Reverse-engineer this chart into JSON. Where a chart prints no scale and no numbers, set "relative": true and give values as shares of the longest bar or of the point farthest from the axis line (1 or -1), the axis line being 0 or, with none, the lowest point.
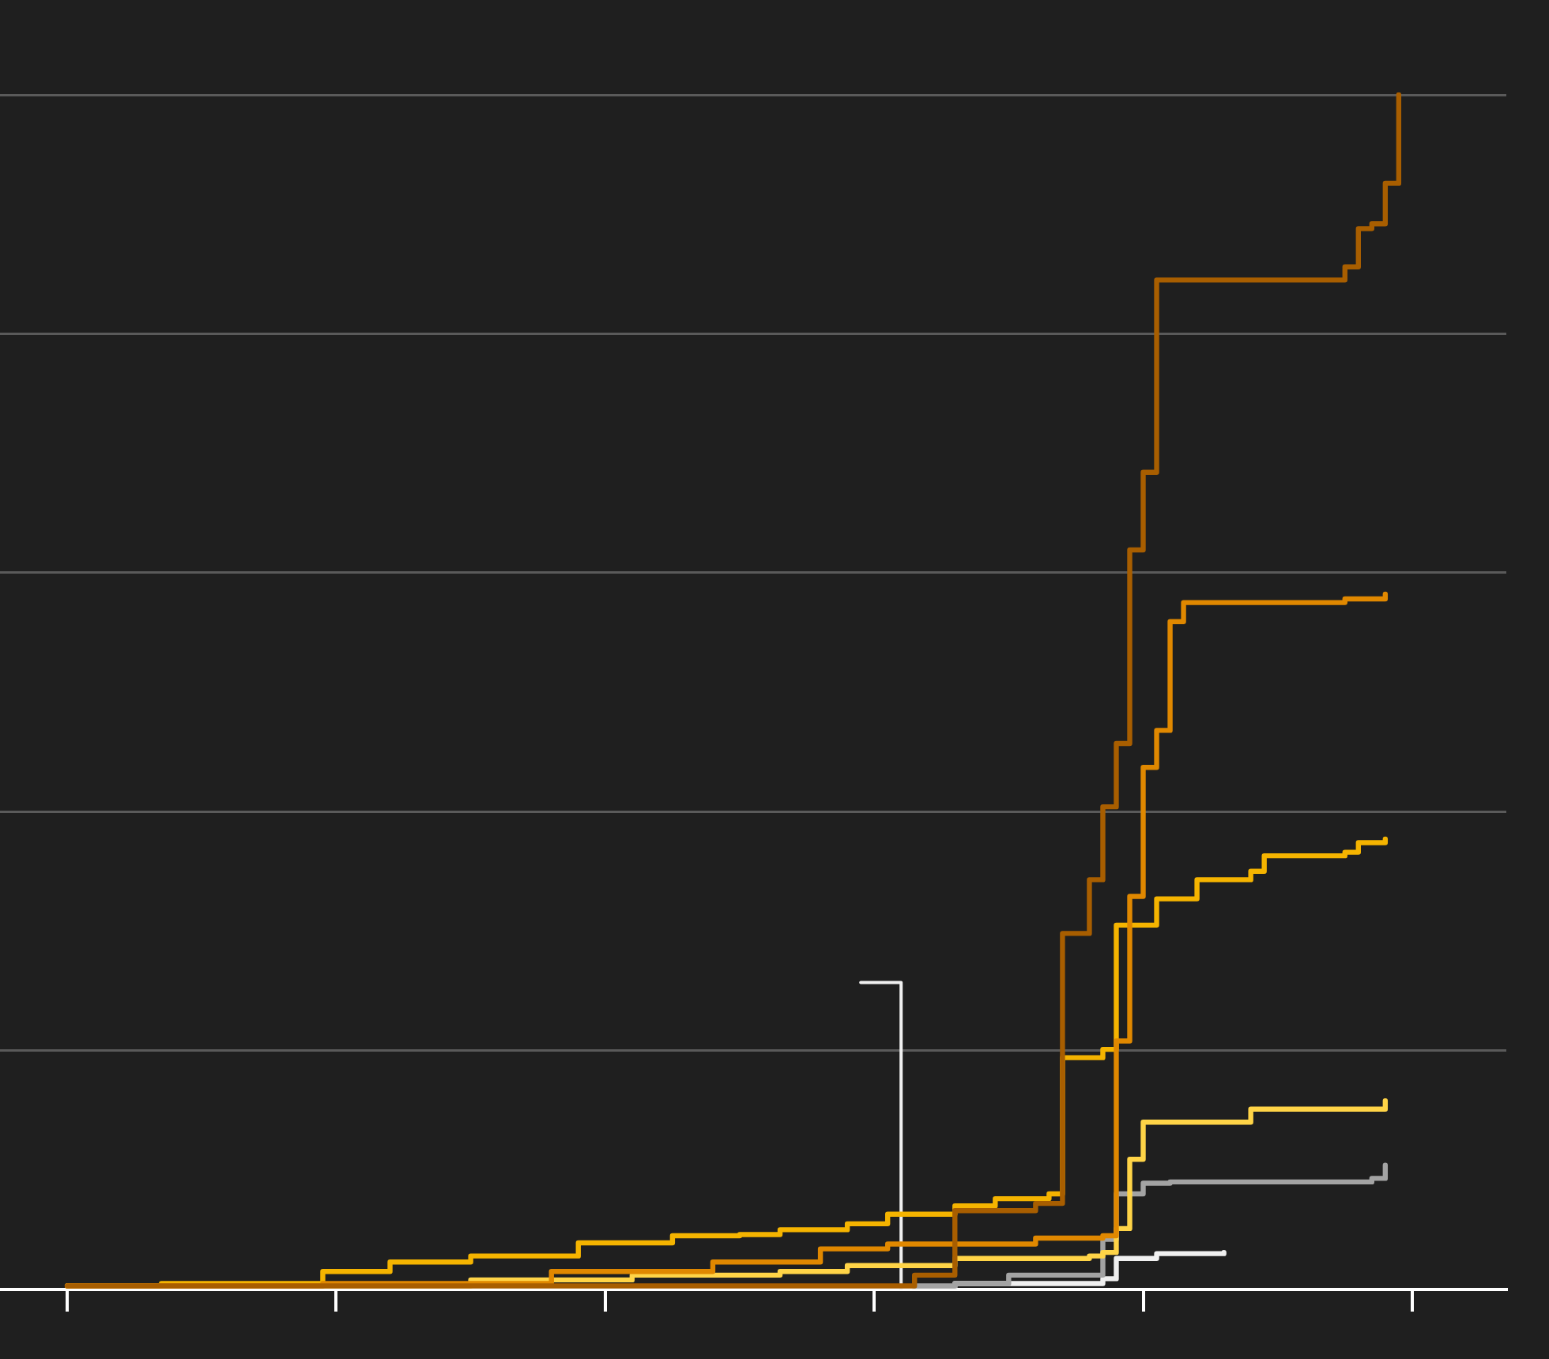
{
  "chart_data": {
    "type": "step",
    "relative": true,
    "grid": "y",
    "legend": false,
    "tick_labels": false,
    "categories": [
      null,
      null,
      null,
      null,
      null,
      null,
      null,
      null,
      null,
      null,
      null,
      null,
      null,
      null,
      null,
      null,
      null,
      null,
      null,
      null,
      null,
      null,
      null,
      null,
      null,
      null,
      null,
      null,
      null,
      null,
      null,
      null,
      null,
      null,
      null,
      null,
      null,
      null,
      null,
      null,
      null,
      null,
      null,
      null,
      null,
      null,
      null,
      null,
      null,
      null,
      null,
      null,
      null,
      null,
      null,
      null,
      null,
      null,
      null,
      null,
      null,
      null,
      null,
      null,
      null,
      null,
      null,
      null,
      null,
      null,
      null,
      null,
      null,
      null,
      null,
      null,
      null,
      null,
      null,
      null,
      null,
      null,
      null,
      null,
      null,
      null,
      null,
      null,
      null,
      null,
      null,
      null,
      null,
      null,
      null,
      null,
      null,
      null,
      null,
      null,
      null,
      null,
      null,
      null,
      null,
      null,
      null,
      null,
      null,
      null,
      null,
      null,
      null
    ],
    "series": [
      {
        "color": "#a85e00",
        "values": [
          null,
          null,
          null,
          null,
          null,
          0.003,
          null,
          null,
          null,
          null,
          null,
          null,
          null,
          null,
          null,
          null,
          null,
          null,
          null,
          null,
          null,
          null,
          null,
          null,
          null,
          null,
          null,
          null,
          null,
          null,
          null,
          null,
          null,
          null,
          null,
          null,
          null,
          null,
          null,
          null,
          null,
          null,
          null,
          null,
          null,
          null,
          null,
          null,
          null,
          null,
          null,
          null,
          null,
          null,
          null,
          null,
          null,
          null,
          null,
          null,
          null,
          null,
          null,
          null,
          null,
          null,
          null,
          null,
          0.012,
          null,
          null,
          0.066,
          null,
          null,
          null,
          null,
          null,
          0.072,
          null,
          0.298,
          null,
          0.343,
          0.404,
          0.457,
          0.619,
          0.684,
          0.845,
          null,
          null,
          null,
          null,
          null,
          null,
          null,
          null,
          null,
          null,
          null,
          null,
          null,
          0.856,
          0.888,
          0.892,
          0.926,
          1.0,
          null,
          null,
          null,
          null,
          null,
          null,
          null,
          null
        ]
      },
      {
        "color": "#e08800",
        "values": [
          null,
          null,
          null,
          null,
          null,
          0.003,
          null,
          null,
          null,
          null,
          null,
          null,
          null,
          null,
          null,
          null,
          null,
          null,
          null,
          null,
          null,
          null,
          null,
          null,
          0.005,
          null,
          null,
          null,
          null,
          null,
          null,
          null,
          null,
          null,
          null,
          null,
          null,
          null,
          null,
          null,
          null,
          0.015,
          null,
          null,
          null,
          null,
          null,
          null,
          null,
          null,
          null,
          null,
          null,
          0.023,
          null,
          null,
          null,
          null,
          null,
          null,
          null,
          0.034,
          null,
          null,
          null,
          null,
          0.038,
          null,
          null,
          null,
          null,
          null,
          null,
          null,
          null,
          null,
          null,
          0.043,
          null,
          null,
          null,
          null,
          0.045,
          0.208,
          0.329,
          0.437,
          0.468,
          0.559,
          0.575,
          null,
          null,
          null,
          null,
          null,
          null,
          null,
          null,
          null,
          null,
          null,
          0.578,
          null,
          null,
          0.582,
          null,
          null,
          null,
          null,
          null,
          null,
          null,
          null,
          null
        ]
      },
      {
        "color": "#f5b400",
        "values": [
          null,
          null,
          null,
          null,
          null,
          0.003,
          null,
          null,
          null,
          null,
          null,
          null,
          0.005,
          null,
          null,
          null,
          null,
          null,
          null,
          null,
          null,
          null,
          null,
          null,
          0.015,
          null,
          null,
          null,
          null,
          0.023,
          null,
          null,
          null,
          null,
          null,
          0.028,
          null,
          null,
          null,
          null,
          null,
          null,
          null,
          0.039,
          null,
          null,
          null,
          null,
          null,
          null,
          0.045,
          null,
          null,
          null,
          null,
          0.046,
          null,
          null,
          0.05,
          null,
          null,
          null,
          null,
          0.055,
          null,
          null,
          0.063,
          null,
          null,
          null,
          null,
          0.07,
          null,
          null,
          0.076,
          null,
          null,
          null,
          0.08,
          0.194,
          null,
          null,
          0.201,
          0.305,
          null,
          null,
          0.327,
          null,
          null,
          0.343,
          null,
          null,
          null,
          0.35,
          0.363,
          null,
          null,
          null,
          null,
          null,
          0.366,
          0.374,
          null,
          0.377,
          null,
          null,
          null,
          null,
          null,
          null,
          null,
          null,
          null
        ]
      },
      {
        "color": "#ffd447",
        "values": [
          null,
          null,
          null,
          null,
          null,
          0.003,
          null,
          null,
          null,
          null,
          null,
          null,
          null,
          null,
          null,
          null,
          null,
          null,
          null,
          null,
          null,
          null,
          null,
          null,
          null,
          null,
          null,
          null,
          null,
          null,
          null,
          null,
          null,
          null,
          null,
          0.008,
          null,
          null,
          null,
          null,
          null,
          null,
          null,
          null,
          null,
          null,
          null,
          0.012,
          null,
          null,
          null,
          null,
          null,
          null,
          null,
          null,
          null,
          null,
          0.015,
          null,
          null,
          null,
          null,
          0.02,
          null,
          null,
          null,
          null,
          null,
          null,
          null,
          0.026,
          null,
          null,
          null,
          null,
          null,
          null,
          null,
          null,
          null,
          0.028,
          0.031,
          0.051,
          0.109,
          0.14,
          null,
          null,
          null,
          null,
          null,
          null,
          null,
          0.151,
          null,
          null,
          null,
          null,
          null,
          null,
          null,
          null,
          null,
          0.158,
          null,
          null,
          null,
          null,
          null,
          null,
          null,
          null,
          null
        ]
      },
      {
        "color": "#a3a3a3",
        "values": [
          null,
          null,
          null,
          null,
          null,
          null,
          null,
          null,
          null,
          null,
          null,
          null,
          null,
          null,
          null,
          null,
          null,
          null,
          null,
          null,
          null,
          null,
          null,
          null,
          null,
          null,
          null,
          null,
          null,
          null,
          null,
          null,
          null,
          null,
          null,
          null,
          null,
          null,
          null,
          null,
          null,
          null,
          null,
          null,
          null,
          null,
          null,
          null,
          null,
          null,
          null,
          null,
          null,
          null,
          null,
          null,
          null,
          null,
          null,
          null,
          null,
          null,
          null,
          null,
          null,
          null,
          null,
          null,
          0.003,
          null,
          null,
          0.005,
          null,
          null,
          null,
          0.012,
          null,
          null,
          null,
          null,
          null,
          null,
          0.042,
          0.08,
          null,
          0.089,
          null,
          0.09,
          null,
          null,
          null,
          null,
          null,
          null,
          null,
          null,
          null,
          null,
          null,
          null,
          null,
          null,
          0.093,
          0.104,
          null,
          null,
          null,
          null,
          null,
          null,
          null,
          null,
          null
        ]
      },
      {
        "color": "#f0f0f0",
        "values": [
          null,
          null,
          null,
          null,
          null,
          null,
          null,
          null,
          null,
          null,
          null,
          null,
          null,
          null,
          null,
          null,
          null,
          null,
          null,
          null,
          null,
          null,
          null,
          null,
          null,
          null,
          null,
          null,
          null,
          null,
          null,
          null,
          null,
          null,
          null,
          null,
          null,
          null,
          null,
          null,
          null,
          null,
          null,
          null,
          null,
          null,
          null,
          null,
          null,
          null,
          null,
          null,
          null,
          null,
          null,
          null,
          null,
          null,
          null,
          null,
          null,
          null,
          null,
          null,
          0.257,
          null,
          null,
          0,
          null,
          null,
          null,
          null,
          null,
          null,
          null,
          null,
          null,
          null,
          null,
          null,
          null,
          null,
          null,
          null,
          null,
          null,
          null,
          null,
          null,
          null,
          null,
          null,
          null,
          null,
          null,
          null,
          null,
          null,
          null,
          null,
          null,
          null,
          null,
          null,
          null,
          null,
          null,
          null,
          null,
          null,
          null,
          null,
          null
        ]
      },
      {
        "color": "#f0f0f0",
        "values": [
          null,
          null,
          null,
          null,
          null,
          null,
          null,
          null,
          null,
          null,
          null,
          null,
          null,
          null,
          null,
          null,
          null,
          null,
          null,
          null,
          null,
          null,
          null,
          null,
          null,
          null,
          null,
          null,
          null,
          null,
          null,
          null,
          null,
          null,
          null,
          null,
          null,
          null,
          null,
          null,
          null,
          null,
          null,
          null,
          null,
          null,
          null,
          null,
          null,
          null,
          null,
          null,
          null,
          null,
          null,
          null,
          null,
          null,
          null,
          null,
          null,
          null,
          null,
          null,
          null,
          null,
          null,
          null,
          0.001,
          null,
          null,
          0.005,
          null,
          null,
          null,
          null,
          null,
          null,
          null,
          null,
          null,
          null,
          0.009,
          0.026,
          null,
          null,
          0.03,
          null,
          null,
          null,
          null,
          0.031,
          null,
          null,
          null,
          null,
          null,
          null,
          null,
          null,
          null,
          null,
          null,
          null,
          null,
          null,
          null,
          null,
          null,
          null,
          null,
          null,
          null
        ]
      }
    ]
  }
}
